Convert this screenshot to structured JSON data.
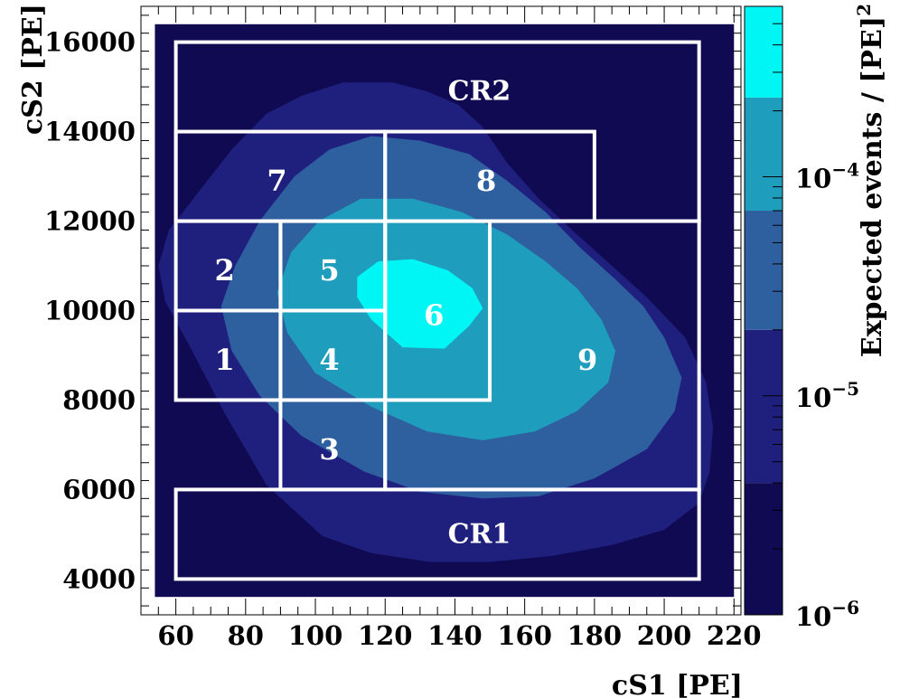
{
  "chart_data": {
    "type": "heatmap",
    "xlabel": "cS1  [PE]",
    "ylabel": "cS2  [PE]",
    "colorbar_label": "Expected events / [PE]",
    "colorbar_label_exp": "2",
    "x_ticks": [
      "60",
      "80",
      "100",
      "120",
      "140",
      "160",
      "180",
      "200",
      "220"
    ],
    "y_ticks": [
      "4000",
      "6000",
      "8000",
      "10000",
      "12000",
      "14000",
      "16000"
    ],
    "xlim": [
      50,
      222
    ],
    "ylim": [
      3200,
      16800
    ],
    "data_extent": {
      "x": [
        54,
        220
      ],
      "y": [
        3600,
        16400
      ]
    },
    "colorbar_ticks": [
      {
        "base": "10",
        "exp": "−4",
        "value": 0.0001
      },
      {
        "base": "10",
        "exp": "−5",
        "value": 1e-05
      },
      {
        "base": "10",
        "exp": "−6",
        "value": 1e-06
      }
    ],
    "colorbar_range": [
      1e-06,
      0.0006
    ],
    "levels": [
      {
        "range": [
          1e-06,
          4e-06
        ],
        "color": "#100a52"
      },
      {
        "range": [
          4e-06,
          2e-05
        ],
        "color": "#1f1f7e"
      },
      {
        "range": [
          2e-05,
          7e-05
        ],
        "color": "#2e5f9f"
      },
      {
        "range": [
          7e-05,
          0.00023
        ],
        "color": "#1f9dbd"
      },
      {
        "range": [
          0.00023,
          0.0006
        ],
        "color": "#00f5f5"
      }
    ],
    "contours": [
      {
        "level": 1,
        "points": [
          [
            102,
            4960
          ],
          [
            116,
            4580
          ],
          [
            133,
            4380
          ],
          [
            150,
            4380
          ],
          [
            168,
            4520
          ],
          [
            185,
            4760
          ],
          [
            200,
            5100
          ],
          [
            210,
            5700
          ],
          [
            213,
            6400
          ],
          [
            214,
            7400
          ],
          [
            212,
            8400
          ],
          [
            206,
            9400
          ],
          [
            195,
            10300
          ],
          [
            185,
            11000
          ],
          [
            175,
            11700
          ],
          [
            164,
            12500
          ],
          [
            155,
            13300
          ],
          [
            148,
            14100
          ],
          [
            141,
            14600
          ],
          [
            132,
            14900
          ],
          [
            122,
            15100
          ],
          [
            108,
            15100
          ],
          [
            96,
            14800
          ],
          [
            86,
            14400
          ],
          [
            76,
            13600
          ],
          [
            66,
            12600
          ],
          [
            58,
            11800
          ],
          [
            55,
            11000
          ],
          [
            57,
            10200
          ],
          [
            64,
            9200
          ],
          [
            74,
            7700
          ],
          [
            86,
            6100
          ]
        ]
      },
      {
        "level": 2,
        "points": [
          [
            114,
            6400
          ],
          [
            130,
            5950
          ],
          [
            148,
            5800
          ],
          [
            164,
            5850
          ],
          [
            180,
            6250
          ],
          [
            195,
            6900
          ],
          [
            203,
            7750
          ],
          [
            205,
            8500
          ],
          [
            200,
            9400
          ],
          [
            194,
            10100
          ],
          [
            186,
            10700
          ],
          [
            176,
            11400
          ],
          [
            166,
            12200
          ],
          [
            155,
            12900
          ],
          [
            144,
            13500
          ],
          [
            130,
            13800
          ],
          [
            116,
            13900
          ],
          [
            104,
            13600
          ],
          [
            94,
            13000
          ],
          [
            84,
            12000
          ],
          [
            77,
            11000
          ],
          [
            73,
            10100
          ],
          [
            76,
            9100
          ],
          [
            84,
            8100
          ],
          [
            96,
            7200
          ]
        ]
      },
      {
        "level": 3,
        "points": [
          [
            116,
            7850
          ],
          [
            132,
            7300
          ],
          [
            148,
            7100
          ],
          [
            163,
            7300
          ],
          [
            175,
            7750
          ],
          [
            184,
            8400
          ],
          [
            186,
            9100
          ],
          [
            182,
            9800
          ],
          [
            175,
            10500
          ],
          [
            166,
            11100
          ],
          [
            155,
            11700
          ],
          [
            142,
            12200
          ],
          [
            128,
            12500
          ],
          [
            113,
            12500
          ],
          [
            101,
            12000
          ],
          [
            93,
            11300
          ],
          [
            89,
            10400
          ],
          [
            92,
            9500
          ],
          [
            100,
            8600
          ]
        ]
      },
      {
        "level": 4,
        "points": [
          [
            125,
            9180
          ],
          [
            137,
            9150
          ],
          [
            144,
            9650
          ],
          [
            148,
            10050
          ],
          [
            145,
            10500
          ],
          [
            138,
            10900
          ],
          [
            128,
            11150
          ],
          [
            118,
            11100
          ],
          [
            112,
            10750
          ],
          [
            112,
            10300
          ],
          [
            116,
            9800
          ]
        ]
      }
    ],
    "boxes": [
      {
        "label": "CR2",
        "x": [
          60,
          210
        ],
        "y": [
          12000,
          16000
        ],
        "label_at": [
          147,
          14900
        ]
      },
      {
        "label": "CR1",
        "x": [
          60,
          210
        ],
        "y": [
          4000,
          6000
        ],
        "label_at": [
          147,
          5000
        ]
      },
      {
        "label": "1",
        "x": [
          60,
          90
        ],
        "y": [
          8000,
          10000
        ],
        "label_at": [
          74,
          8900
        ]
      },
      {
        "label": "2",
        "x": [
          60,
          90
        ],
        "y": [
          10000,
          12000
        ],
        "label_at": [
          74,
          10900
        ]
      },
      {
        "label": "3",
        "x": [
          90,
          120
        ],
        "y": [
          6000,
          8000
        ],
        "label_at": [
          104,
          6900
        ]
      },
      {
        "label": "4",
        "x": [
          90,
          120
        ],
        "y": [
          8000,
          10000
        ],
        "label_at": [
          104,
          8900
        ]
      },
      {
        "label": "5",
        "x": [
          90,
          120
        ],
        "y": [
          10000,
          12000
        ],
        "label_at": [
          104,
          10900
        ]
      },
      {
        "label": "6",
        "x": [
          120,
          150
        ],
        "y": [
          8000,
          12000
        ],
        "label_at": [
          134,
          9900
        ]
      },
      {
        "label": "7",
        "x": [
          60,
          120
        ],
        "y": [
          12000,
          14000
        ],
        "label_at": [
          89,
          12900
        ]
      },
      {
        "label": "8",
        "x": [
          120,
          180
        ],
        "y": [
          12000,
          14000
        ],
        "label_at": [
          149,
          12900
        ]
      },
      {
        "label": "9",
        "x": [
          120,
          210
        ],
        "y": [
          6000,
          12000
        ],
        "label_at": [
          178,
          8900
        ]
      }
    ]
  }
}
